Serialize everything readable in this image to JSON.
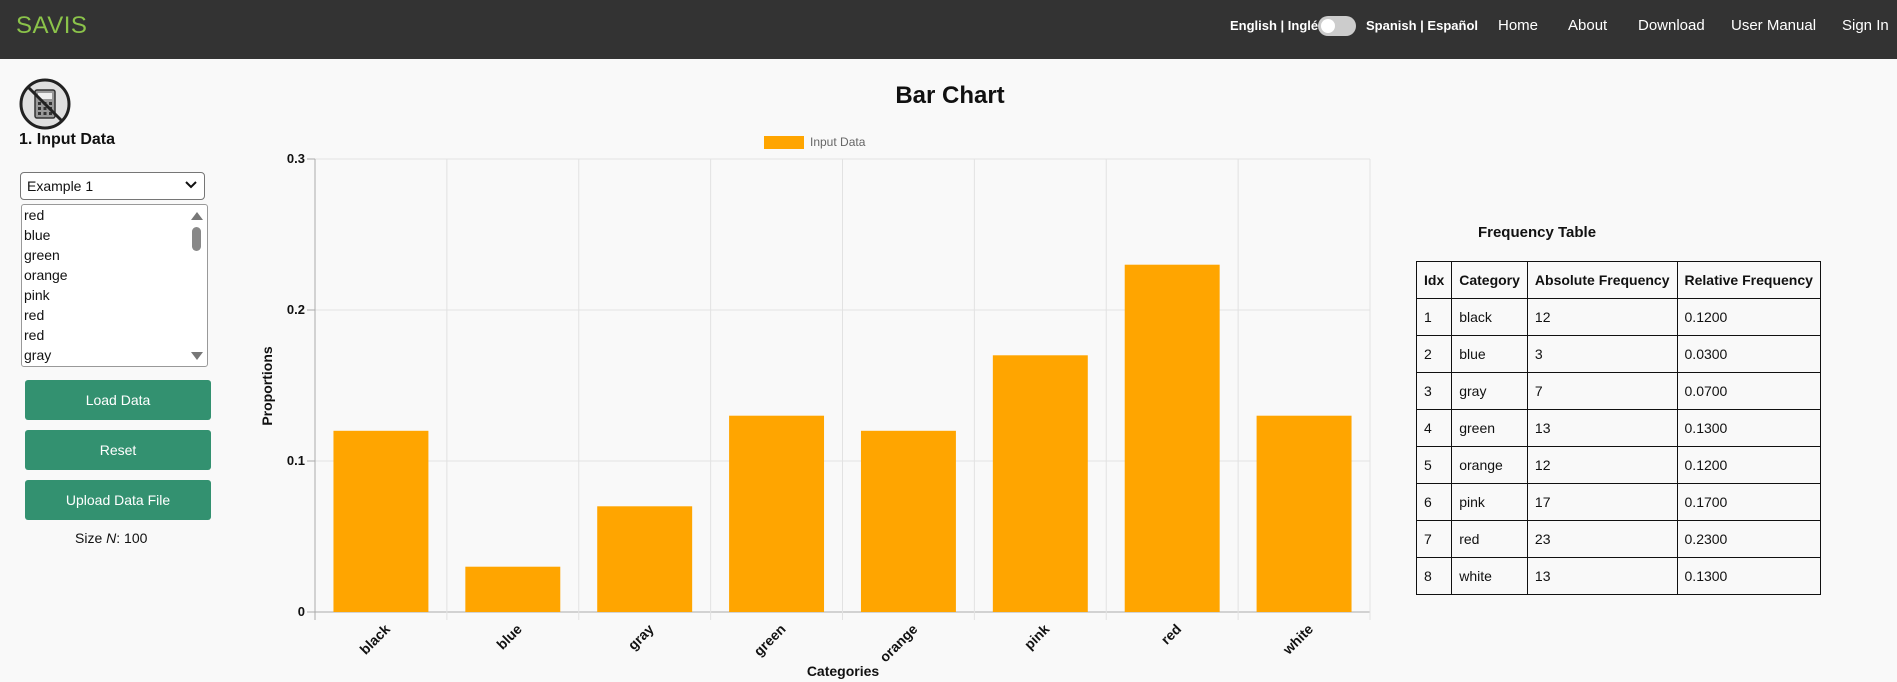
{
  "navbar": {
    "brand": "SAVIS",
    "lang_en": "English | Inglés",
    "lang_es": "Spanish | Español",
    "links": [
      "Home",
      "About",
      "Download",
      "User Manual",
      "Sign In"
    ],
    "brand_color": "#8bc34a"
  },
  "input": {
    "section_title": "1. Input Data",
    "select_value": "Example 1",
    "lines": [
      "red",
      "blue",
      "green",
      "orange",
      "pink",
      "red",
      "red",
      "gray"
    ],
    "buttons": [
      "Load Data",
      "Reset",
      "Upload Data File"
    ],
    "size_label": "Size ",
    "size_n": "N",
    "size_value": ": 100",
    "button_color": "#339170"
  },
  "chart_data": {
    "type": "bar",
    "title": "Bar Chart",
    "xlabel": "Categories",
    "ylabel": "Proportions",
    "categories": [
      "black",
      "blue",
      "gray",
      "green",
      "orange",
      "pink",
      "red",
      "white"
    ],
    "series": [
      {
        "name": "Input Data",
        "values": [
          0.12,
          0.03,
          0.07,
          0.13,
          0.12,
          0.17,
          0.23,
          0.13
        ],
        "color": "#ffa500"
      }
    ],
    "ylim": [
      0,
      0.3
    ],
    "yticks": [
      "0",
      "0.1",
      "0.2",
      "0.3"
    ],
    "grid": true,
    "legend_position": "top"
  },
  "frequency_table": {
    "title": "Frequency Table",
    "headers": [
      "Idx",
      "Category",
      "Absolute Frequency",
      "Relative Frequency"
    ],
    "rows": [
      [
        "1",
        "black",
        "12",
        "0.1200"
      ],
      [
        "2",
        "blue",
        "3",
        "0.0300"
      ],
      [
        "3",
        "gray",
        "7",
        "0.0700"
      ],
      [
        "4",
        "green",
        "13",
        "0.1300"
      ],
      [
        "5",
        "orange",
        "12",
        "0.1200"
      ],
      [
        "6",
        "pink",
        "17",
        "0.1700"
      ],
      [
        "7",
        "red",
        "23",
        "0.2300"
      ],
      [
        "8",
        "white",
        "13",
        "0.1300"
      ]
    ]
  }
}
